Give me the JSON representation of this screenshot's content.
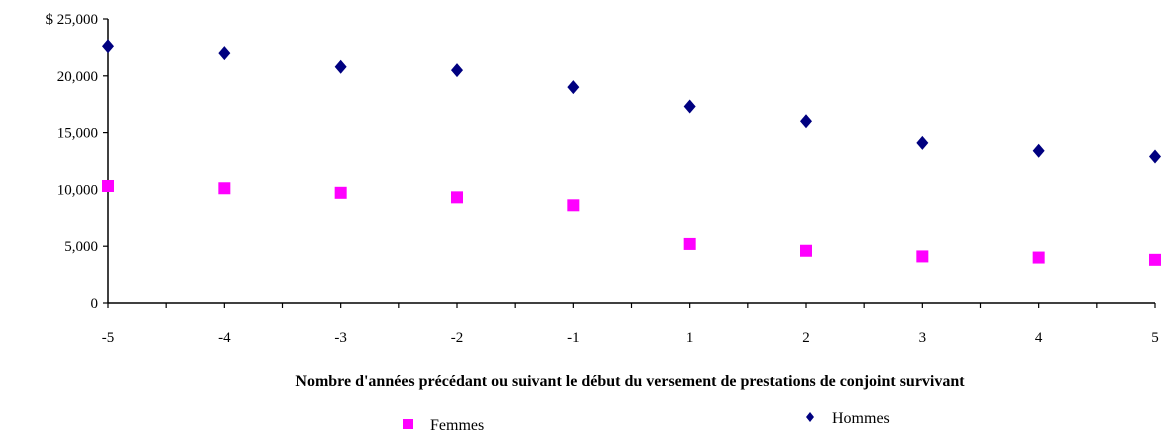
{
  "chart_data": {
    "type": "scatter",
    "title": "",
    "xlabel": "Nombre d'années précédant ou suivant le début du versement de prestations de conjoint survivant",
    "ylabel": "",
    "categories": [
      "-5",
      "-4",
      "-3",
      "-2",
      "-1",
      "1",
      "2",
      "3",
      "4",
      "5"
    ],
    "y_tick_labels": [
      "0",
      "5,000",
      "10,000",
      "15,000",
      "20,000",
      "$ 25,000"
    ],
    "y_ticks": [
      0,
      5000,
      10000,
      15000,
      20000,
      25000
    ],
    "ylim": [
      0,
      25000
    ],
    "grid": false,
    "legend_position": "bottom",
    "series": [
      {
        "name": "Femmes",
        "marker": "square",
        "color": "#ff00ff",
        "values": [
          10300,
          10100,
          9700,
          9300,
          8600,
          5200,
          4600,
          4100,
          4000,
          3800
        ]
      },
      {
        "name": "Hommes",
        "marker": "diamond",
        "color": "#000080",
        "values": [
          22600,
          22000,
          20800,
          20500,
          19000,
          17300,
          16000,
          14100,
          13400,
          12900
        ]
      }
    ]
  }
}
